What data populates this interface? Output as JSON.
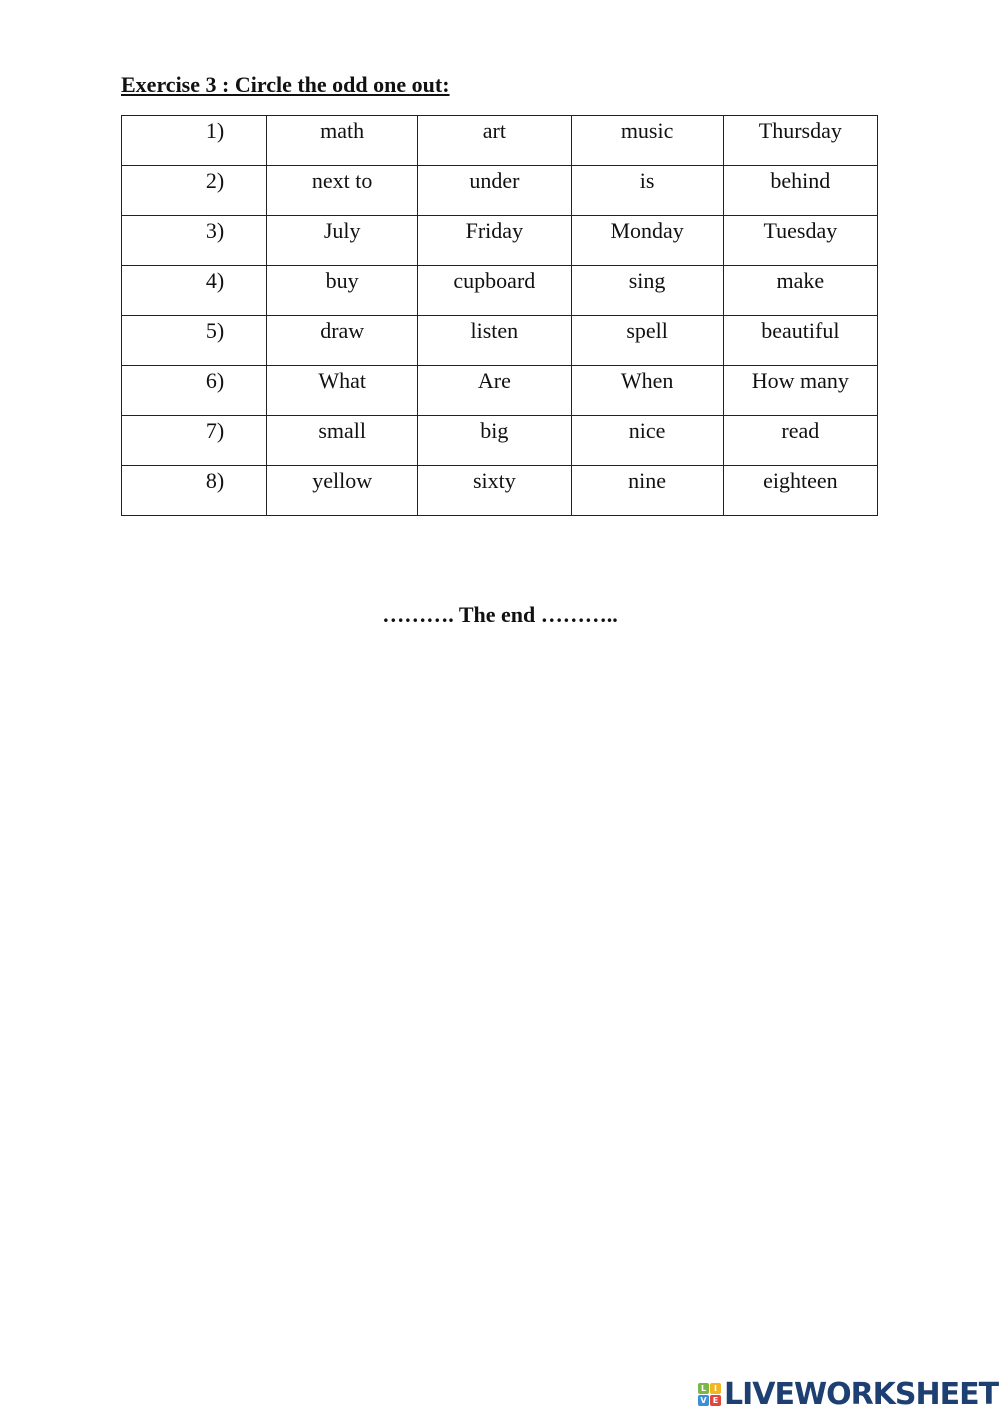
{
  "exercise": {
    "title": "Exercise 3 : Circle the odd one out:",
    "rows": [
      {
        "num": "1)",
        "words": [
          "math",
          "art",
          "music",
          "Thursday"
        ]
      },
      {
        "num": "2)",
        "words": [
          "next to",
          "under",
          "is",
          "behind"
        ]
      },
      {
        "num": "3)",
        "words": [
          "July",
          "Friday",
          "Monday",
          "Tuesday"
        ]
      },
      {
        "num": "4)",
        "words": [
          "buy",
          "cupboard",
          "sing",
          "make"
        ]
      },
      {
        "num": "5)",
        "words": [
          "draw",
          "listen",
          "spell",
          "beautiful"
        ]
      },
      {
        "num": "6)",
        "words": [
          "What",
          "Are",
          "When",
          "How many"
        ]
      },
      {
        "num": "7)",
        "words": [
          "small",
          "big",
          "nice",
          "read"
        ]
      },
      {
        "num": "8)",
        "words": [
          "yellow",
          "sixty",
          "nine",
          "eighteen"
        ]
      }
    ]
  },
  "footer": {
    "end_text": "………. The end ………..",
    "logo_text": "LIVEWORKSHEETS",
    "logo_blocks": [
      "L",
      "I",
      "V",
      "E"
    ]
  },
  "colors": {
    "logo": "#1d3f72",
    "blocks": [
      "#7ab648",
      "#f3b61f",
      "#3a8fd6",
      "#e0463c"
    ]
  }
}
